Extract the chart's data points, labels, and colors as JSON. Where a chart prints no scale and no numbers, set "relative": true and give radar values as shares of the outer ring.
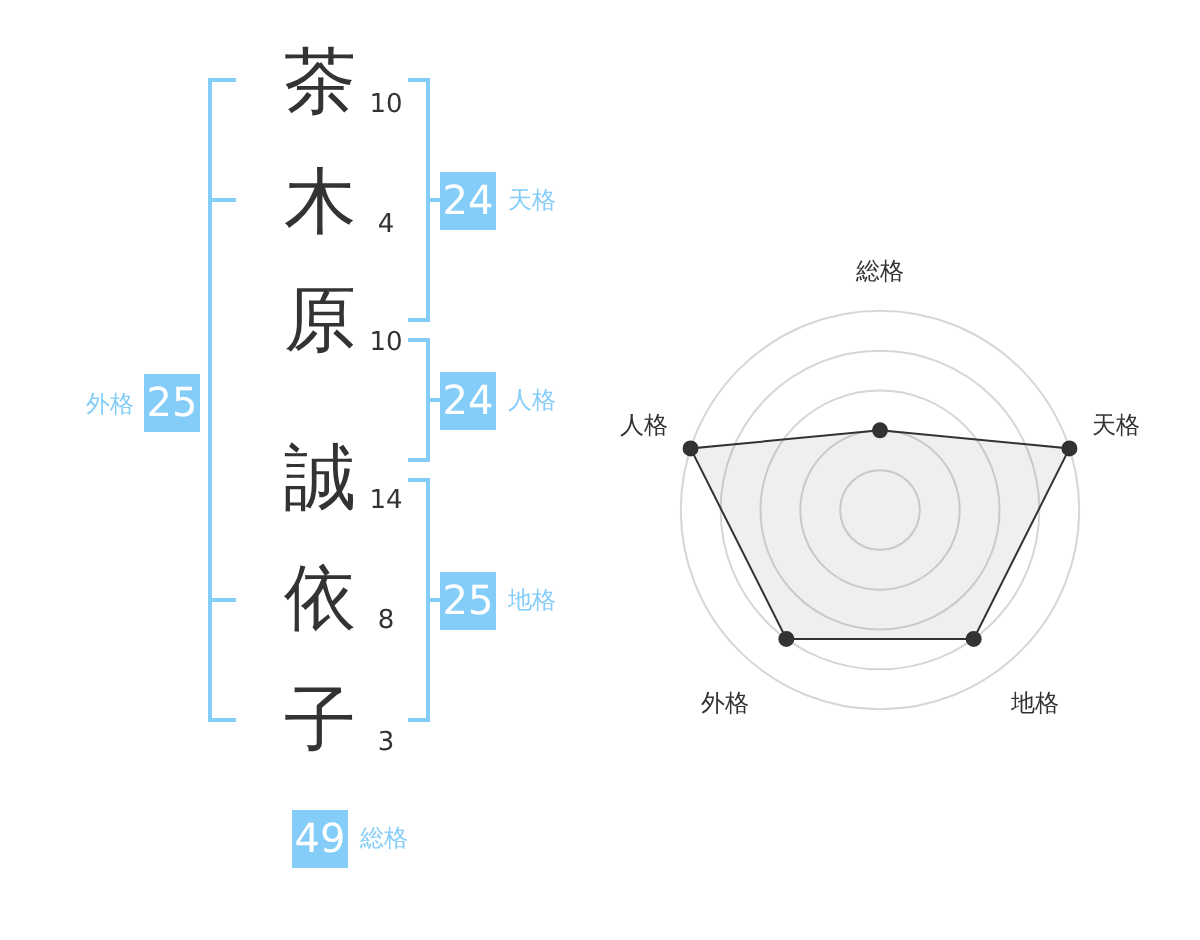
{
  "chart_data": [
    {
      "type": "other",
      "categories": [
        "茶",
        "木",
        "原",
        "誠",
        "依",
        "子"
      ],
      "values": [
        10,
        4,
        10,
        14,
        8,
        3
      ],
      "data_labels": true
    },
    {
      "type": "other",
      "categories": [
        "天格",
        "人格",
        "地格",
        "外格",
        "総格"
      ],
      "values": [
        24,
        24,
        25,
        25,
        49
      ],
      "color": "#84cdf8",
      "data_labels": true
    },
    {
      "type": "radar",
      "categories": [
        "総格",
        "天格",
        "地格",
        "外格",
        "人格"
      ],
      "series": [
        {
          "color": "#333333",
          "values": [
            0.4,
            1,
            0.8,
            0.8,
            1
          ]
        }
      ],
      "relative": true,
      "grid": true,
      "marker": "circle"
    }
  ]
}
